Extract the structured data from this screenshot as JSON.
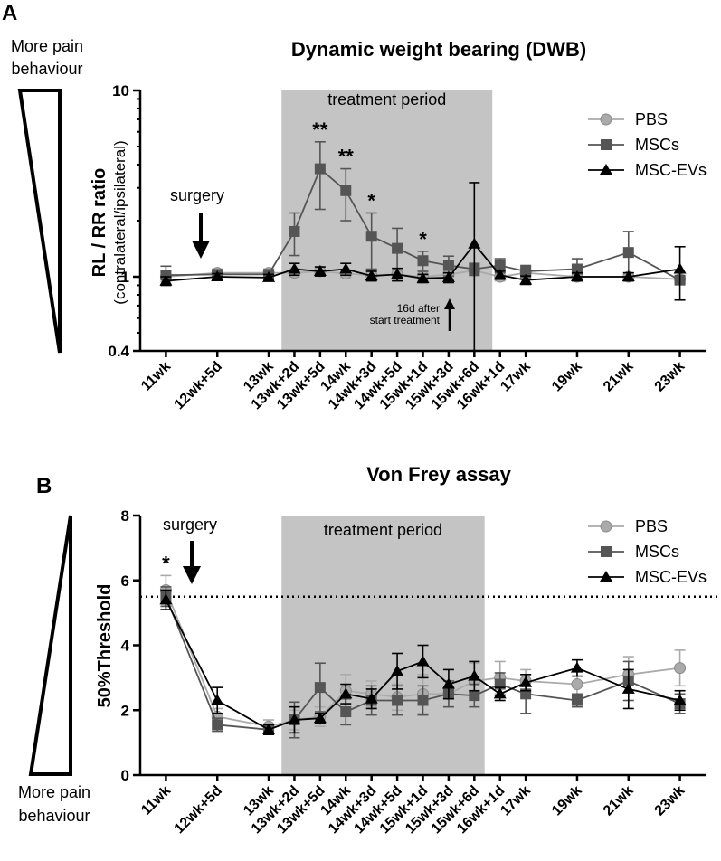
{
  "chart_data": [
    {
      "panel_label": "A",
      "type": "line",
      "title": "Dynamic weight bearing (DWB)",
      "ylabel": "RL / RR ratio",
      "ylabel_sub": "(contralateral/ipsilateral)",
      "yscale": "log",
      "ylim": [
        0.4,
        10
      ],
      "yticks": [
        0.4,
        1,
        10
      ],
      "ytick_labels": [
        "0.4",
        "1",
        "10"
      ],
      "categories": [
        "11wk",
        "12wk+5d",
        "13wk",
        "13wk+2d",
        "13wk+5d",
        "14wk",
        "14wk+3d",
        "14wk+5d",
        "15wk+1d",
        "15wk+3d",
        "15wk+6d",
        "16wk+1d",
        "17wk",
        "19wk",
        "21wk",
        "23wk"
      ],
      "x_positions": [
        0,
        1,
        2,
        2.5,
        3,
        3.5,
        4,
        4.5,
        5,
        5.5,
        6,
        6.5,
        7,
        8,
        9,
        10
      ],
      "xlim": [
        -0.5,
        10.5
      ],
      "shaded_region": {
        "label": "treatment period",
        "x_start": 2.25,
        "x_end": 6.35
      },
      "annotations": {
        "surgery": "surgery",
        "after_line1": "16d after",
        "after_line2": "start treatment"
      },
      "series": [
        {
          "name": "PBS",
          "marker": "circle",
          "color": "#aaaaaa",
          "values": [
            1.0,
            1.05,
            1.05,
            1.05,
            1.07,
            1.04,
            1.02,
            1.03,
            1.0,
            1.03,
            1.08,
            1.0,
            1.05,
            1.0,
            1.0,
            0.97
          ],
          "errors": [
            0.06,
            0.05,
            0.05,
            0.05,
            0.06,
            0.05,
            0.05,
            0.05,
            0.05,
            0.06,
            0.07,
            0.05,
            0.06,
            0.05,
            0.05,
            0.04
          ]
        },
        {
          "name": "MSCs",
          "marker": "square",
          "color": "#555555",
          "values": [
            1.02,
            1.03,
            1.03,
            1.75,
            3.8,
            2.9,
            1.65,
            1.42,
            1.22,
            1.15,
            1.1,
            1.15,
            1.07,
            1.1,
            1.35,
            0.96
          ],
          "errors": [
            0.12,
            0.06,
            0.06,
            0.45,
            1.5,
            0.9,
            0.55,
            0.4,
            0.15,
            0.14,
            0.08,
            0.1,
            0.08,
            0.15,
            0.4,
            0.04
          ]
        },
        {
          "name": "MSC-EVs",
          "marker": "triangle",
          "color": "#000000",
          "values": [
            0.95,
            1.0,
            0.99,
            1.1,
            1.07,
            1.1,
            1.01,
            1.03,
            0.98,
            0.99,
            1.5,
            1.02,
            0.96,
            1.0,
            1.0,
            1.1
          ],
          "errors": [
            0.05,
            0.04,
            0.04,
            0.08,
            0.06,
            0.08,
            0.06,
            0.08,
            0.05,
            0.06,
            1.7,
            0.05,
            0.05,
            0.05,
            0.05,
            0.35
          ]
        }
      ],
      "significance": [
        {
          "x": 3.0,
          "label": "**"
        },
        {
          "x": 3.5,
          "label": "**"
        },
        {
          "x": 4.0,
          "label": "*"
        },
        {
          "x": 5.0,
          "label": "*"
        }
      ],
      "legend_location": "top-right",
      "side_label": "More pain behaviour"
    },
    {
      "panel_label": "B",
      "type": "line",
      "title": "Von Frey assay",
      "ylabel": "50%Threshold",
      "yscale": "linear",
      "ylim": [
        0,
        8
      ],
      "yticks": [
        0,
        2,
        4,
        6,
        8
      ],
      "ytick_labels": [
        "0",
        "2",
        "4",
        "6",
        "8"
      ],
      "categories": [
        "11wk",
        "12wk+5d",
        "13wk",
        "13wk+2d",
        "13wk+5d",
        "14wk",
        "14wk+3d",
        "14wk+5d",
        "15wk+1d",
        "15wk+3d",
        "15wk+6d",
        "16wk+1d",
        "17wk",
        "19wk",
        "21wk",
        "23wk"
      ],
      "x_positions": [
        0,
        1,
        2,
        2.5,
        3,
        3.5,
        4,
        4.5,
        5,
        5.5,
        6,
        6.5,
        7,
        8,
        9,
        10
      ],
      "xlim": [
        -0.5,
        10.5
      ],
      "shaded_region": {
        "label": "treatment period",
        "x_start": 2.25,
        "x_end": 6.2
      },
      "reference_line": 5.5,
      "annotations": {
        "surgery": "surgery"
      },
      "series": [
        {
          "name": "PBS",
          "marker": "circle",
          "color": "#aaaaaa",
          "values": [
            5.7,
            1.8,
            1.5,
            1.7,
            1.8,
            2.6,
            2.5,
            2.4,
            2.5,
            2.5,
            2.9,
            3.0,
            2.9,
            2.8,
            3.1,
            3.3
          ],
          "errors": [
            0.45,
            0.25,
            0.2,
            0.3,
            0.3,
            0.5,
            0.4,
            0.4,
            0.6,
            0.4,
            0.55,
            0.5,
            0.35,
            0.4,
            0.55,
            0.55
          ]
        },
        {
          "name": "MSCs",
          "marker": "square",
          "color": "#555555",
          "values": [
            5.5,
            1.55,
            1.4,
            1.7,
            2.7,
            1.95,
            2.3,
            2.3,
            2.3,
            2.5,
            2.45,
            2.8,
            2.5,
            2.3,
            2.9,
            2.2
          ],
          "errors": [
            0.3,
            0.2,
            0.15,
            0.55,
            0.75,
            0.4,
            0.45,
            0.45,
            0.45,
            0.4,
            0.35,
            0.35,
            0.6,
            0.2,
            0.6,
            0.3
          ]
        },
        {
          "name": "MSC-EVs",
          "marker": "triangle",
          "color": "#000000",
          "values": [
            5.4,
            2.3,
            1.4,
            1.7,
            1.75,
            2.5,
            2.35,
            3.2,
            3.5,
            2.8,
            3.05,
            2.5,
            2.85,
            3.3,
            2.65,
            2.3
          ],
          "errors": [
            0.3,
            0.4,
            0.15,
            0.4,
            0.15,
            0.3,
            0.3,
            0.55,
            0.5,
            0.45,
            0.45,
            0.2,
            0.25,
            0.25,
            0.6,
            0.3
          ]
        }
      ],
      "significance": [
        {
          "x": 0.0,
          "label": "*"
        }
      ],
      "legend_location": "top-right",
      "side_label_top": "",
      "side_label_bottom": "More pain behaviour"
    }
  ],
  "side_texts": {
    "a_line1": "More pain",
    "a_line2": "behaviour",
    "b_line1": "More pain",
    "b_line2": "behaviour"
  }
}
